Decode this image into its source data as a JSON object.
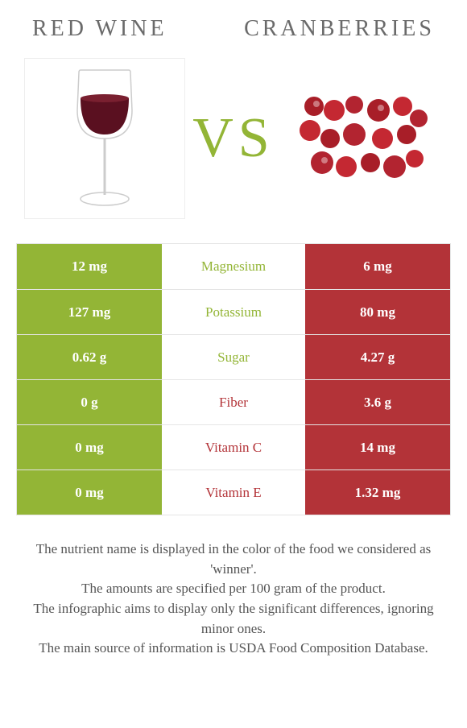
{
  "colors": {
    "left_bg": "#93b536",
    "right_bg": "#b33338",
    "left_text": "#93b536",
    "right_text": "#b33338",
    "vs": "#93b536"
  },
  "header": {
    "left_title": "Red Wine",
    "right_title": "Cranberries"
  },
  "vs_label": "VS",
  "rows": [
    {
      "left": "12 mg",
      "label": "Magnesium",
      "right": "6 mg",
      "winner": "left"
    },
    {
      "left": "127 mg",
      "label": "Potassium",
      "right": "80 mg",
      "winner": "left"
    },
    {
      "left": "0.62 g",
      "label": "Sugar",
      "right": "4.27 g",
      "winner": "left"
    },
    {
      "left": "0 g",
      "label": "Fiber",
      "right": "3.6 g",
      "winner": "right"
    },
    {
      "left": "0 mg",
      "label": "Vitamin C",
      "right": "14 mg",
      "winner": "right"
    },
    {
      "left": "0 mg",
      "label": "Vitamin E",
      "right": "1.32 mg",
      "winner": "right"
    }
  ],
  "footer": {
    "line1": "The nutrient name is displayed in the color of the food we considered as 'winner'.",
    "line2": "The amounts are specified per 100 gram of the product.",
    "line3": "The infographic aims to display only the significant differences, ignoring minor ones.",
    "line4": "The main source of information is USDA Food Composition Database."
  }
}
